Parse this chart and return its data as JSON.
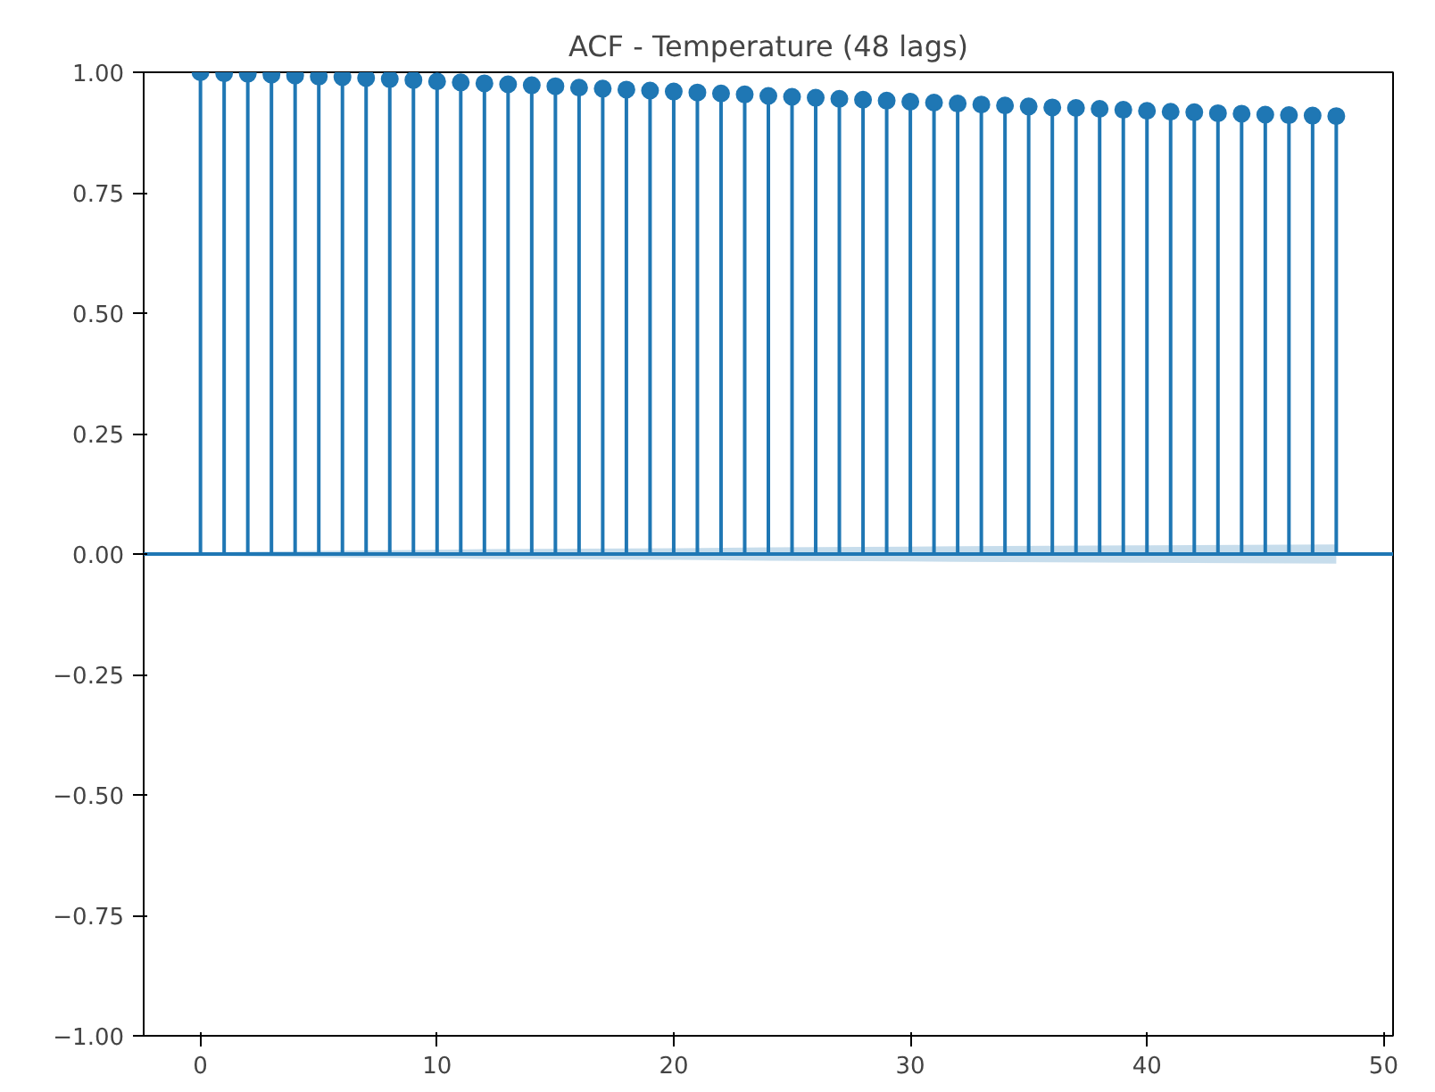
{
  "chart_data": {
    "type": "lollipop",
    "title": "ACF - Temperature (48 lags)",
    "x": [
      0,
      1,
      2,
      3,
      4,
      5,
      6,
      7,
      8,
      9,
      10,
      11,
      12,
      13,
      14,
      15,
      16,
      17,
      18,
      19,
      20,
      21,
      22,
      23,
      24,
      25,
      26,
      27,
      28,
      29,
      30,
      31,
      32,
      33,
      34,
      35,
      36,
      37,
      38,
      39,
      40,
      41,
      42,
      43,
      44,
      45,
      46,
      47,
      48
    ],
    "series": [
      {
        "color": "#1f77b4",
        "marker": "circle",
        "values": [
          1.0,
          0.998,
          0.997,
          0.995,
          0.993,
          0.991,
          0.99,
          0.988,
          0.986,
          0.984,
          0.981,
          0.979,
          0.977,
          0.975,
          0.973,
          0.971,
          0.968,
          0.966,
          0.964,
          0.962,
          0.96,
          0.958,
          0.956,
          0.954,
          0.951,
          0.949,
          0.947,
          0.945,
          0.943,
          0.941,
          0.939,
          0.937,
          0.935,
          0.933,
          0.931,
          0.929,
          0.927,
          0.926,
          0.924,
          0.922,
          0.92,
          0.918,
          0.917,
          0.915,
          0.914,
          0.912,
          0.911,
          0.91,
          0.909
        ]
      },
      {
        "type": "line",
        "color": "#1f77b4",
        "marker": "none",
        "x": [
          -2.4,
          1,
          4,
          8,
          12,
          16,
          20,
          24,
          28,
          32,
          36,
          40,
          44,
          48,
          50.4
        ],
        "values": [
          0,
          0,
          0,
          0,
          0,
          0,
          0,
          0,
          0,
          0,
          0,
          0,
          0,
          0,
          0
        ],
        "lower": [
          null,
          -0.004,
          -0.006,
          -0.008,
          -0.01,
          -0.011,
          -0.012,
          -0.014,
          -0.015,
          -0.016,
          -0.017,
          -0.018,
          -0.019,
          -0.02,
          null
        ],
        "upper": [
          null,
          0.004,
          0.006,
          0.008,
          0.01,
          0.011,
          0.012,
          0.014,
          0.015,
          0.016,
          0.017,
          0.018,
          0.019,
          0.02,
          null
        ]
      }
    ],
    "xlim": [
      -2.4,
      50.4
    ],
    "xticks": [
      0,
      10,
      20,
      30,
      40,
      50
    ],
    "ylim": [
      -1.0,
      1.0
    ],
    "yticks": [
      {
        "value": -1.0,
        "label": "−1.00"
      },
      {
        "value": -0.75,
        "label": "−0.75"
      },
      {
        "value": -0.5,
        "label": "−0.50"
      },
      {
        "value": -0.25,
        "label": "−0.25"
      },
      {
        "value": 0,
        "label": "0.00"
      },
      {
        "value": 0.25,
        "label": "0.25"
      },
      {
        "value": 0.5,
        "label": "0.50"
      },
      {
        "value": 0.75,
        "label": "0.75"
      },
      {
        "value": 1.0,
        "label": "1.00"
      }
    ],
    "grid": false
  }
}
